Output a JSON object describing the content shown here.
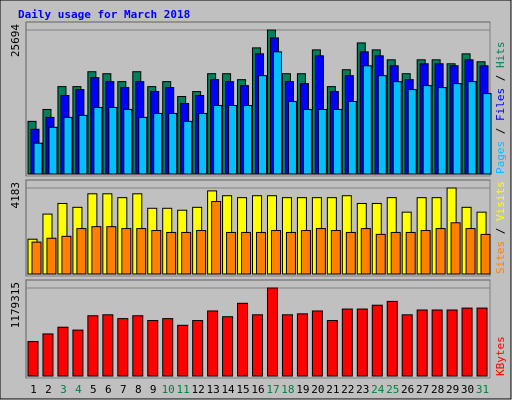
{
  "chart_data": {
    "type": "bar",
    "title": "Daily usage for March 2018",
    "categories": [
      "1",
      "2",
      "3",
      "4",
      "5",
      "6",
      "7",
      "8",
      "9",
      "10",
      "11",
      "12",
      "13",
      "14",
      "15",
      "16",
      "17",
      "18",
      "19",
      "20",
      "21",
      "22",
      "23",
      "24",
      "25",
      "26",
      "27",
      "28",
      "29",
      "30",
      "31"
    ],
    "category_colors": [
      "#000000",
      "#000000",
      "#008040",
      "#008040",
      "#000000",
      "#000000",
      "#000000",
      "#000000",
      "#000000",
      "#008040",
      "#008040",
      "#000000",
      "#000000",
      "#000000",
      "#000000",
      "#000000",
      "#008040",
      "#008040",
      "#000000",
      "#000000",
      "#000000",
      "#000000",
      "#000000",
      "#008040",
      "#008040",
      "#000000",
      "#000000",
      "#000000",
      "#000000",
      "#000000",
      "#008040"
    ],
    "panels": [
      {
        "ylim": [
          0,
          25694
        ],
        "yticks": [
          25694
        ],
        "series": [
          {
            "name": "Hits",
            "color": "#00805c",
            "values": [
              9392,
              11518,
              15594,
              15594,
              18252,
              17897,
              16480,
              18252,
              15594,
              16480,
              13822,
              14708,
              17897,
              17897,
              16834,
              22505,
              25694,
              17897,
              17897,
              22150,
              15594,
              18606,
              23390,
              22150,
              20378,
              17897,
              20378,
              20378,
              19669,
              21441,
              20024
            ]
          },
          {
            "name": "Files",
            "color": "#0000ff",
            "values": [
              7974,
              10100,
              13999,
              15062,
              17188,
              16480,
              15416,
              16480,
              14708,
              15416,
              12581,
              13999,
              16834,
              16480,
              15771,
              21441,
              24276,
              16480,
              16125,
              21087,
              14708,
              17543,
              21796,
              21087,
              19315,
              16834,
              19669,
              19669,
              19315,
              20378,
              19315
            ]
          },
          {
            "name": "Pages",
            "color": "#00c0ff",
            "values": [
              5493,
              8328,
              10100,
              10455,
              11872,
              11872,
              11518,
              10100,
              10809,
              10809,
              9392,
              10809,
              12227,
              12227,
              12227,
              17543,
              21796,
              12936,
              11518,
              11518,
              11518,
              12936,
              19315,
              17543,
              16480,
              15062,
              15771,
              15416,
              16125,
              16480,
              14353
            ]
          }
        ]
      },
      {
        "ylim": [
          0,
          4183
        ],
        "yticks": [
          4183
        ],
        "series": [
          {
            "name": "Visits",
            "color": "#ffff00",
            "values": [
              1692,
              2914,
              3431,
              3243,
              3901,
              3901,
              3713,
              3901,
              3196,
              3196,
              3102,
              3243,
              4042,
              3807,
              3713,
              3807,
              3807,
              3713,
              3713,
              3713,
              3713,
              3807,
              3431,
              3431,
              3713,
              3008,
              3713,
              3713,
              4183,
              3243,
              3008
            ]
          },
          {
            "name": "Sites",
            "color": "#ff8000",
            "values": [
              1551,
              1739,
              1833,
              2209,
              2303,
              2303,
              2209,
              2209,
              2115,
              2021,
              2021,
              2115,
              3525,
              2021,
              2021,
              2021,
              2115,
              2021,
              2115,
              2209,
              2115,
              2021,
              2209,
              1927,
              2021,
              2021,
              2115,
              2209,
              2491,
              2209,
              1927
            ]
          }
        ]
      },
      {
        "ylim": [
          0,
          1179315
        ],
        "yticks": [
          1179315
        ],
        "series": [
          {
            "name": "KBytes",
            "color": "#ff0000",
            "values": [
              461484,
              564036,
              653769,
              615312,
              807597,
              820416,
              769140,
              807597,
              743502,
              769140,
              679407,
              743502,
              871692,
              794778,
              974244,
              820416,
              1179315,
              820416,
              833235,
              871692,
              743502,
              897330,
              897330,
              948606,
              999882,
              820416,
              884511,
              884511,
              884511,
              910149,
              910149
            ]
          }
        ]
      }
    ]
  }
}
